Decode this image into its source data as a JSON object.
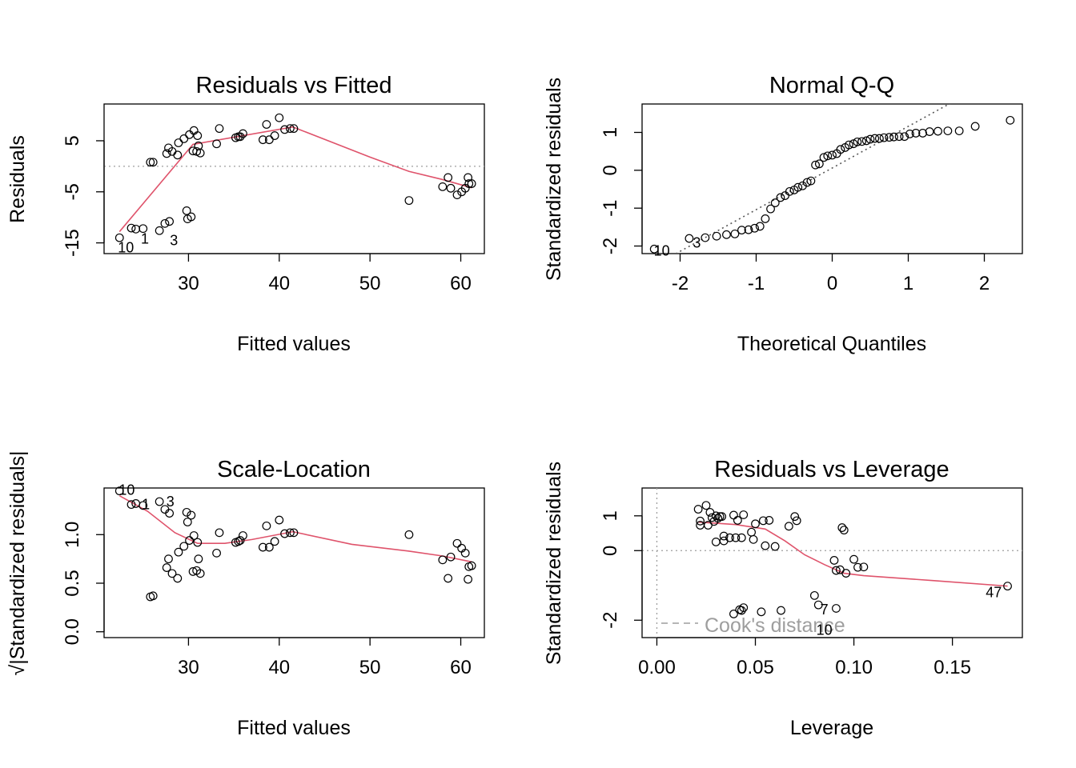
{
  "chart_data": [
    {
      "type": "scatter",
      "title": "Residuals vs Fitted",
      "xlabel": "Fitted values",
      "ylabel": "Residuals",
      "xlim": [
        20.7,
        62.6
      ],
      "ylim": [
        -17.1,
        12.2
      ],
      "xticks": [
        30,
        40,
        50,
        60
      ],
      "yticks": [
        -15,
        -5,
        5
      ],
      "hline": 0,
      "points": [
        [
          22.4,
          -14.0
        ],
        [
          23.7,
          -12.1
        ],
        [
          24.2,
          -12.3
        ],
        [
          25.0,
          -12.2
        ],
        [
          25.8,
          0.8
        ],
        [
          26.1,
          0.8
        ],
        [
          26.8,
          -12.6
        ],
        [
          27.4,
          -11.2
        ],
        [
          27.6,
          2.5
        ],
        [
          27.8,
          3.6
        ],
        [
          27.9,
          -10.8
        ],
        [
          28.2,
          2.9
        ],
        [
          28.8,
          2.2
        ],
        [
          28.9,
          4.6
        ],
        [
          29.5,
          5.4
        ],
        [
          29.8,
          -8.7
        ],
        [
          29.9,
          -10.3
        ],
        [
          30.1,
          6.2
        ],
        [
          30.3,
          -9.9
        ],
        [
          30.5,
          3.0
        ],
        [
          30.6,
          7.0
        ],
        [
          30.9,
          2.9
        ],
        [
          31.0,
          6.0
        ],
        [
          31.1,
          4.0
        ],
        [
          31.3,
          2.6
        ],
        [
          33.1,
          4.4
        ],
        [
          33.4,
          7.4
        ],
        [
          35.2,
          5.6
        ],
        [
          35.5,
          5.8
        ],
        [
          35.7,
          5.8
        ],
        [
          36.0,
          6.4
        ],
        [
          38.2,
          5.2
        ],
        [
          38.6,
          8.2
        ],
        [
          38.9,
          5.2
        ],
        [
          39.5,
          6.0
        ],
        [
          40.0,
          9.5
        ],
        [
          40.6,
          7.2
        ],
        [
          41.2,
          7.4
        ],
        [
          41.6,
          7.4
        ],
        [
          54.3,
          -6.7
        ],
        [
          58.0,
          -4.0
        ],
        [
          58.6,
          -2.2
        ],
        [
          58.9,
          -4.3
        ],
        [
          59.6,
          -5.6
        ],
        [
          60.1,
          -5.0
        ],
        [
          60.5,
          -4.3
        ],
        [
          60.8,
          -2.2
        ],
        [
          60.9,
          -3.4
        ],
        [
          61.2,
          -3.4
        ]
      ],
      "smooth": [
        [
          22.4,
          -12.8
        ],
        [
          30.5,
          4.3
        ],
        [
          41.5,
          7.7
        ],
        [
          50.0,
          1.8
        ],
        [
          54.3,
          -1.0
        ],
        [
          58.0,
          -2.6
        ],
        [
          61.2,
          -4.2
        ]
      ],
      "labels": [
        {
          "text": "10",
          "x": 23.1,
          "y": -15.9
        },
        {
          "text": "1",
          "x": 25.2,
          "y": -14.2
        },
        {
          "text": "3",
          "x": 28.4,
          "y": -14.5
        }
      ]
    },
    {
      "type": "scatter",
      "title": "Normal Q-Q",
      "xlabel": "Theoretical Quantiles",
      "ylabel": "Standardized residuals",
      "xlim": [
        -2.5,
        2.5
      ],
      "ylim": [
        -2.2,
        1.75
      ],
      "xticks": [
        -2,
        -1,
        0,
        1,
        2
      ],
      "yticks": [
        -2,
        -1,
        0,
        1
      ],
      "refline": [
        [
          -2.5,
          -2.69
        ],
        [
          2.5,
          2.81
        ]
      ],
      "points": [
        [
          -2.34,
          -2.08
        ],
        [
          -1.88,
          -1.8
        ],
        [
          -1.67,
          -1.78
        ],
        [
          -1.52,
          -1.74
        ],
        [
          -1.39,
          -1.7
        ],
        [
          -1.28,
          -1.68
        ],
        [
          -1.19,
          -1.58
        ],
        [
          -1.1,
          -1.57
        ],
        [
          -1.02,
          -1.53
        ],
        [
          -0.95,
          -1.48
        ],
        [
          -0.88,
          -1.28
        ],
        [
          -0.81,
          -1.02
        ],
        [
          -0.75,
          -0.86
        ],
        [
          -0.68,
          -0.72
        ],
        [
          -0.62,
          -0.67
        ],
        [
          -0.56,
          -0.56
        ],
        [
          -0.5,
          -0.52
        ],
        [
          -0.45,
          -0.45
        ],
        [
          -0.39,
          -0.41
        ],
        [
          -0.33,
          -0.32
        ],
        [
          -0.28,
          -0.28
        ],
        [
          -0.22,
          0.14
        ],
        [
          -0.17,
          0.17
        ],
        [
          -0.11,
          0.34
        ],
        [
          -0.06,
          0.38
        ],
        [
          0.0,
          0.4
        ],
        [
          0.06,
          0.44
        ],
        [
          0.11,
          0.55
        ],
        [
          0.17,
          0.6
        ],
        [
          0.22,
          0.67
        ],
        [
          0.28,
          0.7
        ],
        [
          0.33,
          0.75
        ],
        [
          0.39,
          0.76
        ],
        [
          0.45,
          0.78
        ],
        [
          0.5,
          0.82
        ],
        [
          0.56,
          0.84
        ],
        [
          0.62,
          0.84
        ],
        [
          0.68,
          0.86
        ],
        [
          0.75,
          0.87
        ],
        [
          0.81,
          0.88
        ],
        [
          0.88,
          0.89
        ],
        [
          0.95,
          0.89
        ],
        [
          1.02,
          0.96
        ],
        [
          1.1,
          0.98
        ],
        [
          1.19,
          0.98
        ],
        [
          1.28,
          1.02
        ],
        [
          1.39,
          1.03
        ],
        [
          1.52,
          1.04
        ],
        [
          1.67,
          1.04
        ],
        [
          1.88,
          1.16
        ],
        [
          2.34,
          1.32
        ]
      ],
      "labels": [
        {
          "text": "10",
          "x": -2.24,
          "y": -2.13
        },
        {
          "text": "3",
          "x": -1.78,
          "y": -1.92
        }
      ]
    },
    {
      "type": "scatter",
      "title": "Scale-Location",
      "xlabel": "Fitted values",
      "ylabel": "√|Standardized residuals|",
      "xlim": [
        20.7,
        62.6
      ],
      "ylim": [
        -0.06,
        1.48
      ],
      "xticks": [
        30,
        40,
        50,
        60
      ],
      "yticks": [
        0.0,
        0.5,
        1.0
      ],
      "points": [
        [
          22.4,
          1.45
        ],
        [
          23.7,
          1.31
        ],
        [
          24.2,
          1.32
        ],
        [
          25.0,
          1.3
        ],
        [
          25.8,
          0.36
        ],
        [
          26.1,
          0.37
        ],
        [
          26.8,
          1.34
        ],
        [
          27.4,
          1.26
        ],
        [
          27.6,
          0.66
        ],
        [
          27.8,
          0.75
        ],
        [
          27.9,
          1.22
        ],
        [
          28.2,
          0.6
        ],
        [
          28.8,
          0.55
        ],
        [
          28.9,
          0.82
        ],
        [
          29.5,
          0.88
        ],
        [
          29.8,
          1.23
        ],
        [
          29.9,
          1.13
        ],
        [
          30.1,
          0.94
        ],
        [
          30.3,
          1.2
        ],
        [
          30.5,
          0.62
        ],
        [
          30.6,
          0.99
        ],
        [
          30.9,
          0.63
        ],
        [
          31.0,
          0.92
        ],
        [
          31.1,
          0.75
        ],
        [
          31.3,
          0.6
        ],
        [
          33.1,
          0.81
        ],
        [
          33.4,
          1.02
        ],
        [
          35.2,
          0.92
        ],
        [
          35.5,
          0.93
        ],
        [
          35.7,
          0.94
        ],
        [
          36.0,
          0.99
        ],
        [
          38.2,
          0.87
        ],
        [
          38.6,
          1.09
        ],
        [
          38.9,
          0.87
        ],
        [
          39.5,
          0.93
        ],
        [
          40.0,
          1.15
        ],
        [
          40.6,
          1.01
        ],
        [
          41.2,
          1.02
        ],
        [
          41.6,
          1.02
        ],
        [
          54.3,
          1.0
        ],
        [
          58.0,
          0.74
        ],
        [
          58.6,
          0.55
        ],
        [
          58.9,
          0.77
        ],
        [
          59.6,
          0.91
        ],
        [
          60.1,
          0.86
        ],
        [
          60.5,
          0.81
        ],
        [
          60.8,
          0.54
        ],
        [
          60.9,
          0.67
        ],
        [
          61.2,
          0.68
        ]
      ],
      "smooth": [
        [
          22.4,
          1.4
        ],
        [
          25.5,
          1.24
        ],
        [
          28.5,
          1.02
        ],
        [
          31.0,
          0.91
        ],
        [
          34.0,
          0.91
        ],
        [
          37.0,
          0.95
        ],
        [
          41.5,
          1.03
        ],
        [
          48.0,
          0.9
        ],
        [
          54.3,
          0.83
        ],
        [
          58.0,
          0.78
        ],
        [
          61.2,
          0.72
        ]
      ],
      "labels": [
        {
          "text": "10",
          "x": 23.2,
          "y": 1.46
        },
        {
          "text": "1",
          "x": 25.3,
          "y": 1.31
        },
        {
          "text": "3",
          "x": 28.0,
          "y": 1.34
        }
      ]
    },
    {
      "type": "scatter",
      "title": "Residuals vs Leverage",
      "xlabel": "Leverage",
      "ylabel": "Standardized residuals",
      "xlim": [
        -0.0075,
        0.1855
      ],
      "ylim": [
        -2.5,
        1.8
      ],
      "xticks": [
        0.0,
        0.05,
        0.1,
        0.15
      ],
      "xtick_labels": [
        "0.00",
        "0.05",
        "0.10",
        "0.15"
      ],
      "yticks": [
        -2,
        0,
        1
      ],
      "hline": 0,
      "vline": 0,
      "points": [
        [
          0.021,
          1.19
        ],
        [
          0.022,
          0.73
        ],
        [
          0.022,
          0.85
        ],
        [
          0.025,
          1.3
        ],
        [
          0.026,
          0.73
        ],
        [
          0.027,
          1.1
        ],
        [
          0.028,
          0.95
        ],
        [
          0.029,
          0.84
        ],
        [
          0.03,
          1.0
        ],
        [
          0.03,
          0.25
        ],
        [
          0.031,
          0.93
        ],
        [
          0.032,
          0.98
        ],
        [
          0.033,
          0.98
        ],
        [
          0.034,
          0.42
        ],
        [
          0.034,
          0.28
        ],
        [
          0.037,
          0.37
        ],
        [
          0.039,
          1.02
        ],
        [
          0.039,
          -1.82
        ],
        [
          0.04,
          0.37
        ],
        [
          0.041,
          0.87
        ],
        [
          0.042,
          -1.7
        ],
        [
          0.043,
          0.37
        ],
        [
          0.043,
          -1.72
        ],
        [
          0.044,
          1.03
        ],
        [
          0.044,
          -1.64
        ],
        [
          0.048,
          0.53
        ],
        [
          0.049,
          0.32
        ],
        [
          0.05,
          0.77
        ],
        [
          0.053,
          -1.76
        ],
        [
          0.054,
          0.86
        ],
        [
          0.055,
          0.14
        ],
        [
          0.057,
          0.87
        ],
        [
          0.06,
          0.12
        ],
        [
          0.063,
          -1.72
        ],
        [
          0.067,
          0.7
        ],
        [
          0.07,
          0.98
        ],
        [
          0.071,
          0.86
        ],
        [
          0.08,
          -1.29
        ],
        [
          0.082,
          -1.56
        ],
        [
          0.09,
          -0.28
        ],
        [
          0.091,
          -1.66
        ],
        [
          0.091,
          -0.57
        ],
        [
          0.093,
          -0.55
        ],
        [
          0.094,
          0.66
        ],
        [
          0.095,
          0.59
        ],
        [
          0.096,
          -0.65
        ],
        [
          0.1,
          -0.25
        ],
        [
          0.102,
          -0.48
        ],
        [
          0.105,
          -0.47
        ],
        [
          0.178,
          -1.02
        ]
      ],
      "smooth": [
        [
          0.021,
          0.82
        ],
        [
          0.04,
          0.75
        ],
        [
          0.055,
          0.62
        ],
        [
          0.065,
          0.28
        ],
        [
          0.075,
          -0.12
        ],
        [
          0.085,
          -0.4
        ],
        [
          0.095,
          -0.65
        ],
        [
          0.105,
          -0.72
        ],
        [
          0.14,
          -0.86
        ],
        [
          0.178,
          -1.02
        ]
      ],
      "labels": [
        {
          "text": "47",
          "x": 0.171,
          "y": -1.2
        },
        {
          "text": "7",
          "x": 0.085,
          "y": -1.7
        },
        {
          "text": "10",
          "x": 0.085,
          "y": -2.28
        }
      ],
      "legend": {
        "text": "Cook's distance",
        "position": "bottom-left"
      }
    }
  ]
}
